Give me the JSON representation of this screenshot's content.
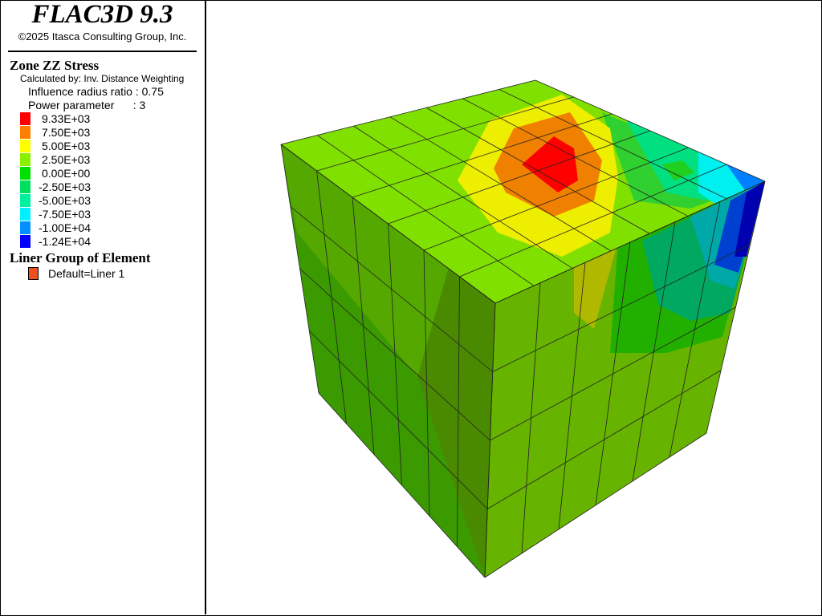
{
  "header": {
    "title": "FLAC3D 9.3",
    "copyright": "©2025 Itasca Consulting Group, Inc."
  },
  "contour_legend": {
    "title": "Zone ZZ Stress",
    "method": "Calculated by: Inv. Distance Weighting",
    "settings": [
      "Influence radius ratio : 0.75",
      "Power parameter      : 3"
    ],
    "entries": [
      {
        "label": "9.33E+03",
        "color": "#ff0000"
      },
      {
        "label": "7.50E+03",
        "color": "#ff8000"
      },
      {
        "label": "5.00E+03",
        "color": "#ffff00"
      },
      {
        "label": "2.50E+03",
        "color": "#88f000"
      },
      {
        "label": "0.00E+00",
        "color": "#00e000"
      },
      {
        "label": "-2.50E+03",
        "color": "#00e060"
      },
      {
        "label": "-5.00E+03",
        "color": "#00f0a0"
      },
      {
        "label": "-7.50E+03",
        "color": "#00f0ff"
      },
      {
        "label": "-1.00E+04",
        "color": "#0090ff"
      },
      {
        "label": "-1.24E+04",
        "color": "#0000ff"
      }
    ]
  },
  "group_legend": {
    "title": "Liner Group of Element",
    "entries": [
      {
        "label": "Default=Liner 1",
        "color": "#f05020"
      }
    ]
  }
}
